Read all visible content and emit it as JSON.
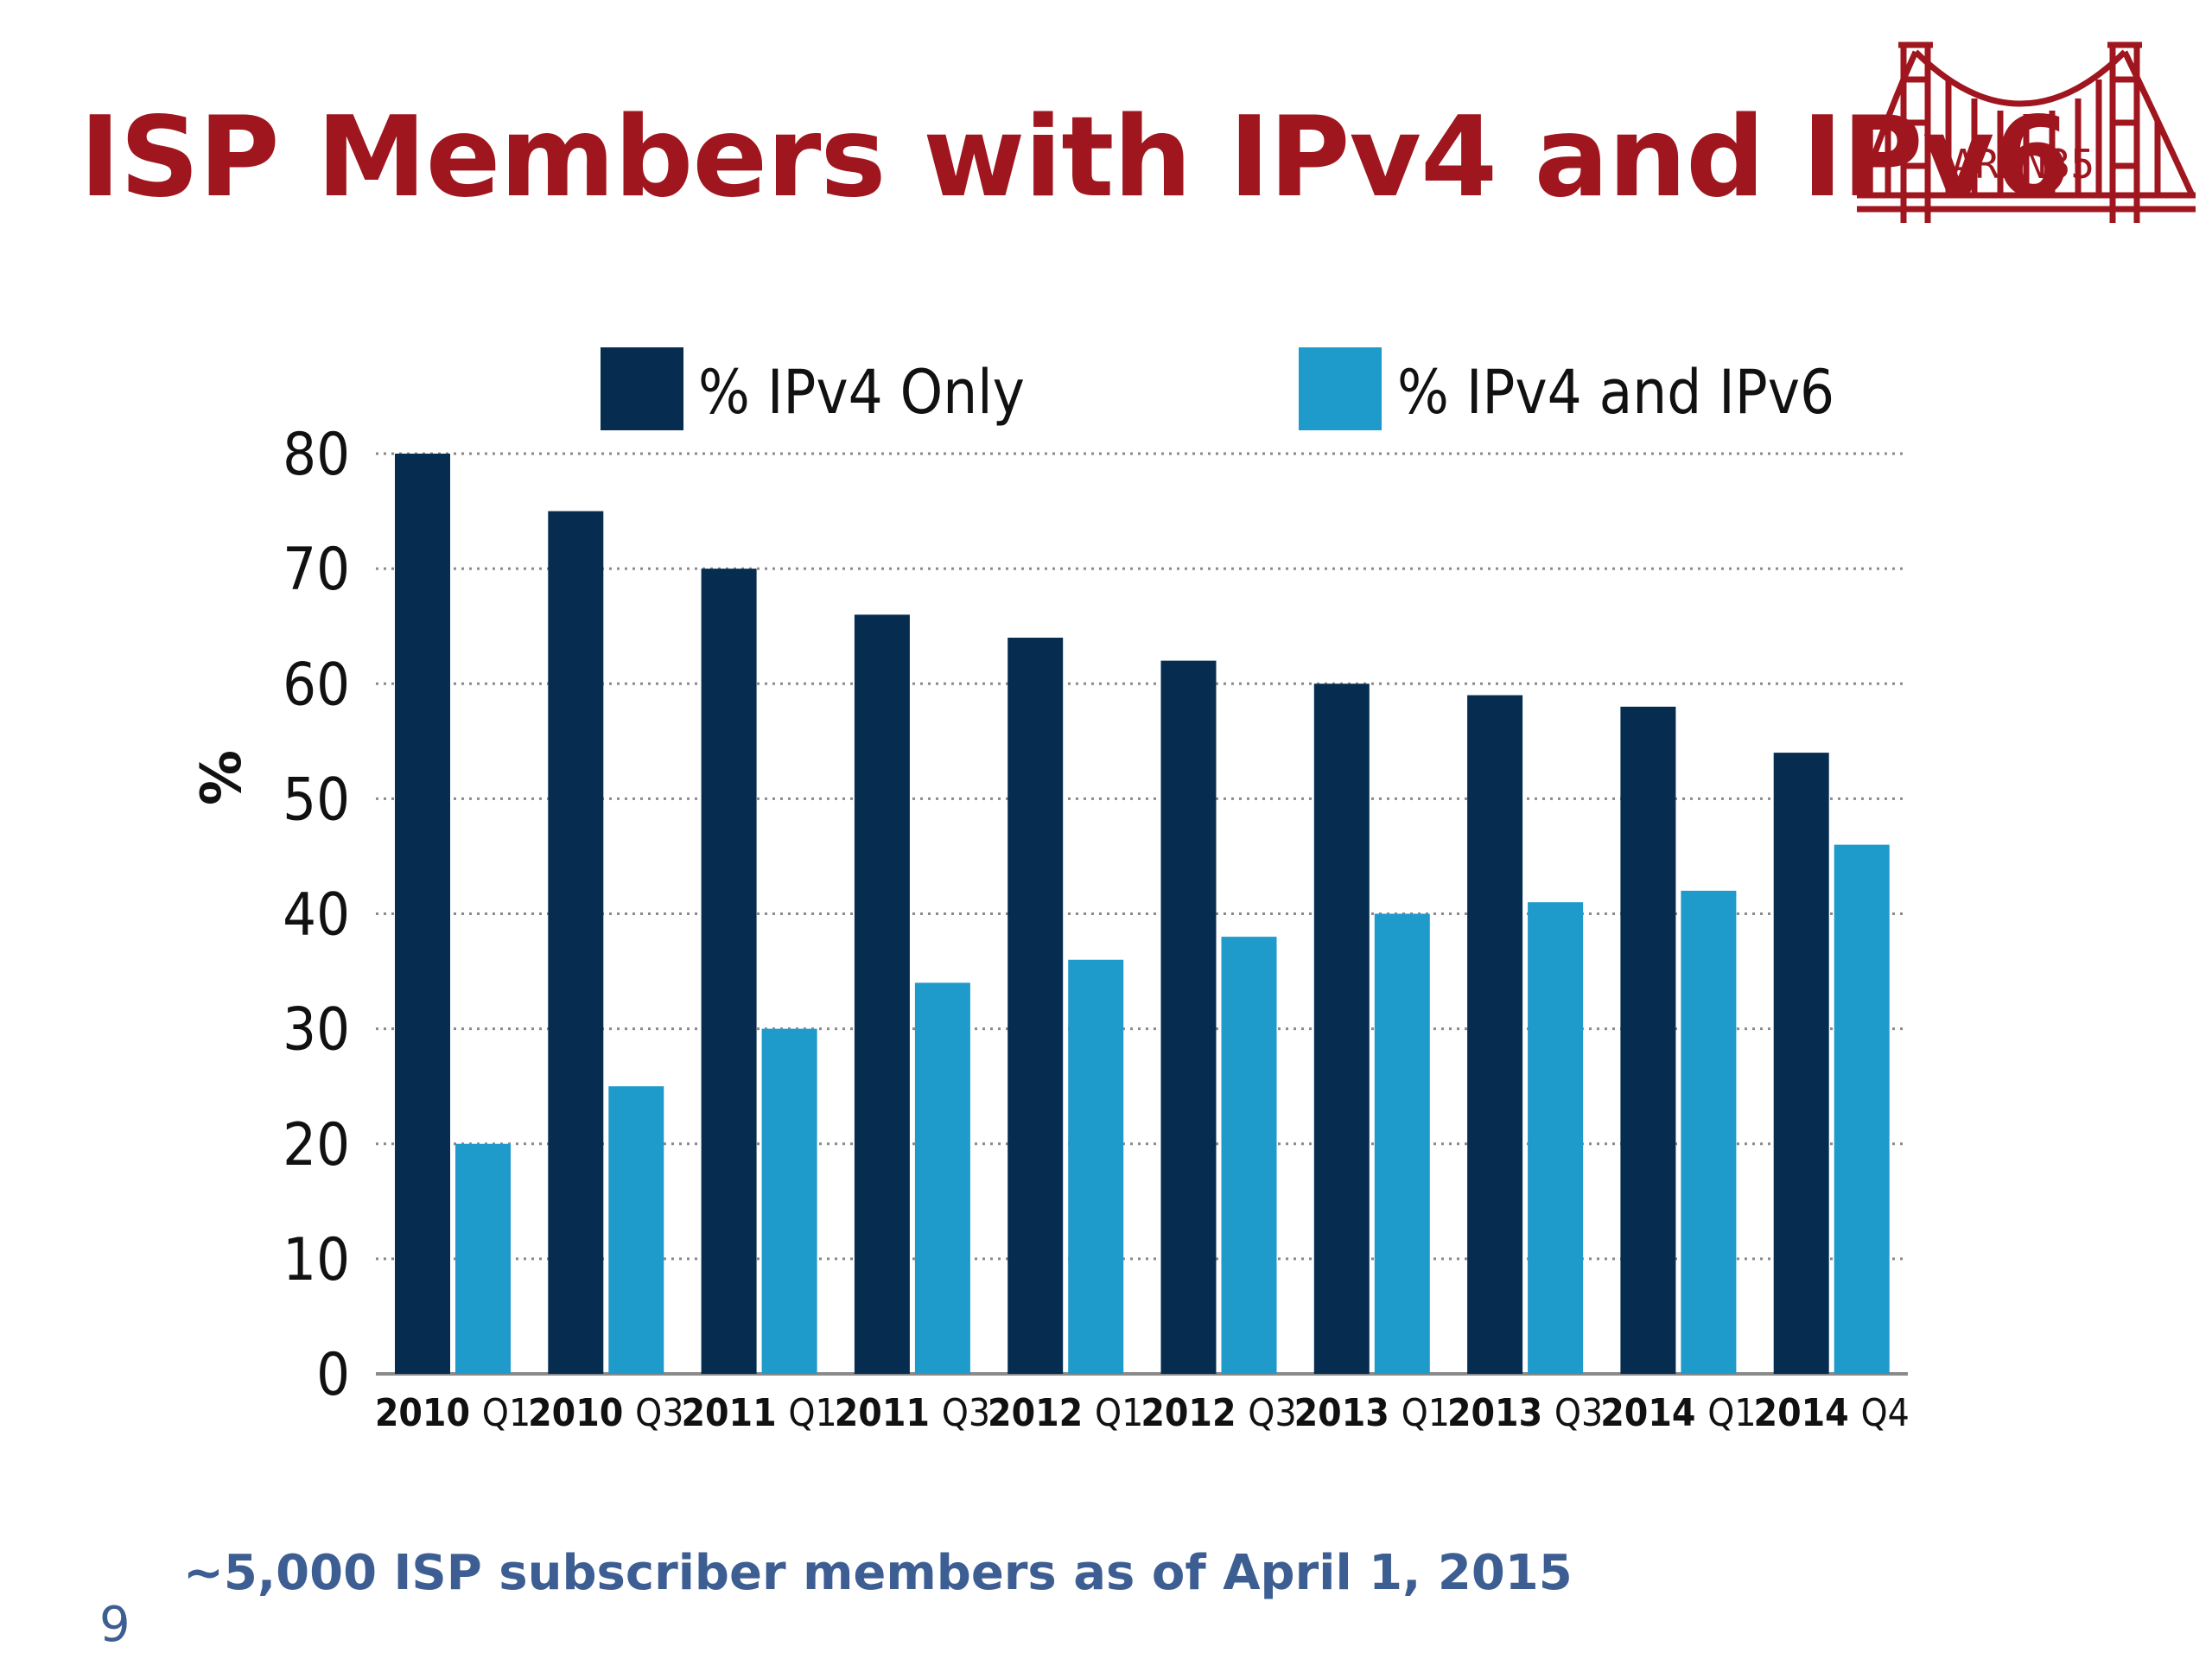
{
  "slide": {
    "title": "ISP Members with IPv4 and IPv6",
    "footnote": "~5,000 ISP subscriber members as of April 1, 2015",
    "slide_number": "9",
    "logo_text": "ARIN35"
  },
  "colors": {
    "title": "#a0161f",
    "ipv4_only": "#062d50",
    "ipv4_and_ipv6": "#1e9acb",
    "footnote": "#3d5e92",
    "logo": "#a0161f"
  },
  "chart_data": {
    "type": "bar",
    "ylabel": "%",
    "ylim": [
      0,
      80
    ],
    "yticks": [
      0,
      10,
      20,
      30,
      40,
      50,
      60,
      70,
      80
    ],
    "grid": true,
    "legend_position": "top",
    "categories": [
      {
        "year": "2010",
        "quarter": "Q1"
      },
      {
        "year": "2010",
        "quarter": "Q3"
      },
      {
        "year": "2011",
        "quarter": "Q1"
      },
      {
        "year": "2011",
        "quarter": "Q3"
      },
      {
        "year": "2012",
        "quarter": "Q1"
      },
      {
        "year": "2012",
        "quarter": "Q3"
      },
      {
        "year": "2013",
        "quarter": "Q1"
      },
      {
        "year": "2013",
        "quarter": "Q3"
      },
      {
        "year": "2014",
        "quarter": "Q1"
      },
      {
        "year": "2014",
        "quarter": "Q4"
      }
    ],
    "series": [
      {
        "name": "% IPv4 Only",
        "color": "#062d50",
        "values": [
          80,
          75,
          70,
          66,
          64,
          62,
          60,
          59,
          58,
          54
        ]
      },
      {
        "name": "% IPv4 and IPv6",
        "color": "#1e9acb",
        "values": [
          20,
          25,
          30,
          34,
          36,
          38,
          40,
          41,
          42,
          46
        ]
      }
    ]
  }
}
